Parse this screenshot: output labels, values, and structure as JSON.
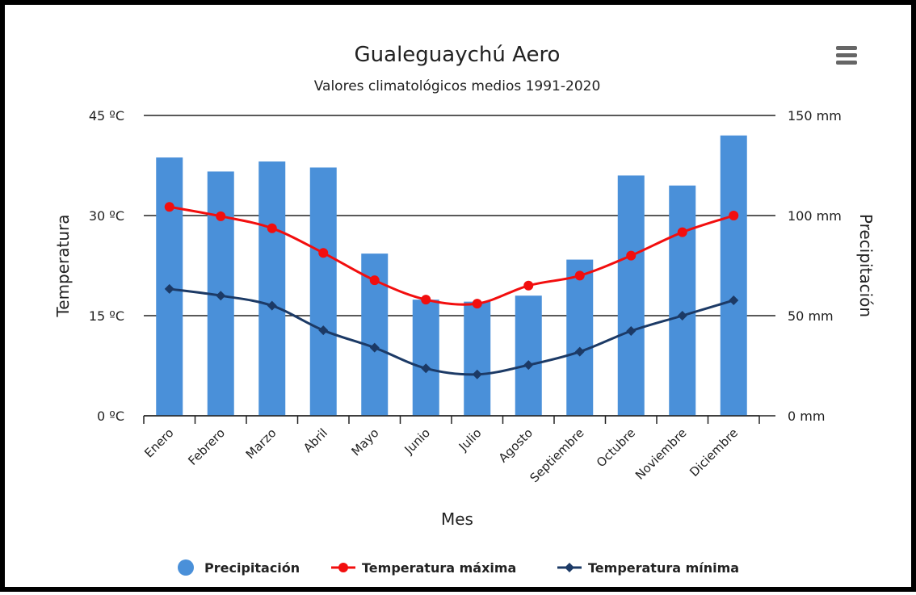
{
  "chart_data": {
    "type": "combo",
    "title": "Gualeguaychú Aero",
    "subtitle": "Valores climatológicos medios 1991-2020",
    "x_label": "Mes",
    "y_label": "Temperatura",
    "y2_label": "Precipitación",
    "categories": [
      "Enero",
      "Febrero",
      "Marzo",
      "Abril",
      "Mayo",
      "Junio",
      "Julio",
      "Agosto",
      "Septiembre",
      "Octubre",
      "Noviembre",
      "Diciembre"
    ],
    "series": [
      {
        "name": "Precipitación",
        "type": "bar",
        "axis": "y2",
        "color": "#4a90d9",
        "values": [
          129,
          122,
          127,
          124,
          81,
          58,
          57,
          60,
          78,
          120,
          115,
          140
        ]
      },
      {
        "name": "Temperatura máxima",
        "type": "line",
        "axis": "y",
        "color": "#f20e0e",
        "marker": "circle",
        "values": [
          31.3,
          29.9,
          28.1,
          24.4,
          20.3,
          17.4,
          16.8,
          19.5,
          21.0,
          24.0,
          27.5,
          30.0
        ]
      },
      {
        "name": "Temperatura mínima",
        "type": "line",
        "axis": "y",
        "color": "#1c3a66",
        "marker": "diamond",
        "values": [
          19.0,
          18.0,
          16.5,
          12.8,
          10.2,
          7.1,
          6.2,
          7.6,
          9.6,
          12.7,
          15.0,
          17.3
        ]
      }
    ],
    "ylim": [
      0,
      45
    ],
    "yticks": [
      {
        "value": 0,
        "label": "0 ºC"
      },
      {
        "value": 15,
        "label": "15 ºC"
      },
      {
        "value": 30,
        "label": "30 ºC"
      },
      {
        "value": 45,
        "label": "45 ºC"
      }
    ],
    "y2lim": [
      0,
      150
    ],
    "y2ticks": [
      {
        "value": 0,
        "label": "0 mm"
      },
      {
        "value": 50,
        "label": "50 mm"
      },
      {
        "value": 100,
        "label": "100 mm"
      },
      {
        "value": 150,
        "label": "150 mm"
      }
    ],
    "grid": true,
    "legend": "bottom"
  }
}
